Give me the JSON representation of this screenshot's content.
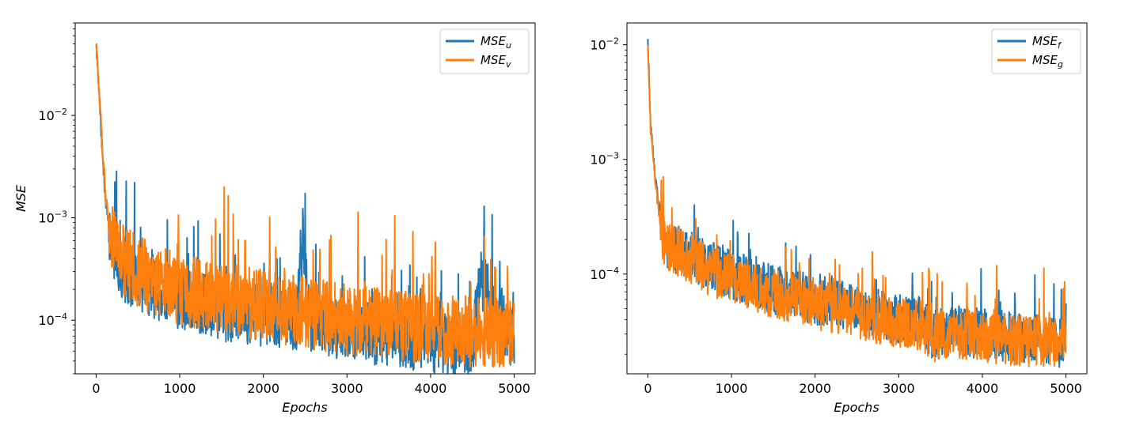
{
  "chart_data": [
    {
      "type": "line",
      "xlabel": "Epochs",
      "ylabel": "MSE",
      "yscale": "log",
      "xlim": [
        -250,
        5250
      ],
      "ylim": [
        3e-05,
        0.08
      ],
      "xticks": [
        0,
        1000,
        2000,
        3000,
        4000,
        5000
      ],
      "xtick_labels": [
        "0",
        "1000",
        "2000",
        "3000",
        "4000",
        "5000"
      ],
      "yticks": [
        0.0001,
        0.001,
        0.01
      ],
      "ytick_labels": [
        {
          "base": "10",
          "exp": "−4"
        },
        {
          "base": "10",
          "exp": "−3"
        },
        {
          "base": "10",
          "exp": "−2"
        }
      ],
      "legend_position": "top-right",
      "grid": false,
      "series": [
        {
          "name": "MSE",
          "name_sub": "u",
          "color": "#1f77b4",
          "x": [
            0,
            50,
            100,
            150,
            200,
            300,
            500,
            700,
            1000,
            1300,
            1600,
            2000,
            2400,
            2470,
            2550,
            3000,
            3500,
            4000,
            4500,
            4600,
            5000
          ],
          "y": [
            0.055,
            0.01,
            0.002,
            0.0008,
            0.0005,
            0.0003,
            0.00025,
            0.0002,
            0.00016,
            0.00014,
            0.00012,
            0.00011,
            0.0001,
            0.00068,
            0.0001,
            8e-05,
            7e-05,
            6e-05,
            5.5e-05,
            0.00026,
            6e-05
          ],
          "noise": 0.3
        },
        {
          "name": "MSE",
          "name_sub": "v",
          "color": "#ff7f0e",
          "x": [
            0,
            50,
            100,
            150,
            200,
            300,
            500,
            700,
            1000,
            1300,
            1600,
            2000,
            2500,
            3000,
            3500,
            4000,
            4500,
            5000
          ],
          "y": [
            0.05,
            0.011,
            0.0022,
            0.0009,
            0.0006,
            0.0004,
            0.0003,
            0.00025,
            0.0002,
            0.00018,
            0.00016,
            0.00014,
            0.00012,
            0.0001,
            9e-05,
            8e-05,
            7.5e-05,
            8e-05
          ],
          "noise": 0.35
        }
      ]
    },
    {
      "type": "line",
      "xlabel": "Epochs",
      "ylabel": "",
      "yscale": "log",
      "xlim": [
        -250,
        5250
      ],
      "ylim": [
        1.35e-05,
        0.0155
      ],
      "xticks": [
        0,
        1000,
        2000,
        3000,
        4000,
        5000
      ],
      "xtick_labels": [
        "0",
        "1000",
        "2000",
        "3000",
        "4000",
        "5000"
      ],
      "yticks": [
        0.0001,
        0.001,
        0.01
      ],
      "ytick_labels": [
        {
          "base": "10",
          "exp": "−4"
        },
        {
          "base": "10",
          "exp": "−3"
        },
        {
          "base": "10",
          "exp": "−2"
        }
      ],
      "legend_position": "top-right",
      "grid": false,
      "series": [
        {
          "name": "MSE",
          "name_sub": "f",
          "color": "#1f77b4",
          "x": [
            0,
            30,
            60,
            100,
            150,
            200,
            300,
            500,
            700,
            1000,
            1300,
            1600,
            2000,
            2500,
            3000,
            3300,
            3400,
            3700,
            4000,
            4500,
            5000
          ],
          "y": [
            0.012,
            0.002,
            0.0012,
            0.0006,
            0.0003,
            0.0002,
            0.00017,
            0.00015,
            0.00012,
            0.0001,
            8e-05,
            7e-05,
            6e-05,
            5e-05,
            4e-05,
            3.8e-05,
            3e-05,
            3.2e-05,
            3e-05,
            2.8e-05,
            2.5e-05
          ],
          "noise": 0.22
        },
        {
          "name": "MSE",
          "name_sub": "g",
          "color": "#ff7f0e",
          "x": [
            0,
            30,
            60,
            100,
            150,
            200,
            300,
            500,
            700,
            1000,
            1300,
            1600,
            2000,
            2500,
            3000,
            3300,
            3400,
            3700,
            4000,
            4500,
            5000
          ],
          "y": [
            0.0105,
            0.0019,
            0.0011,
            0.00055,
            0.00028,
            0.00019,
            0.00016,
            0.00014,
            0.00011,
            9e-05,
            7.5e-05,
            6.5e-05,
            5.5e-05,
            4.5e-05,
            3.7e-05,
            3.5e-05,
            2.8e-05,
            3e-05,
            2.8e-05,
            2.6e-05,
            2.5e-05
          ],
          "noise": 0.22
        }
      ]
    }
  ]
}
